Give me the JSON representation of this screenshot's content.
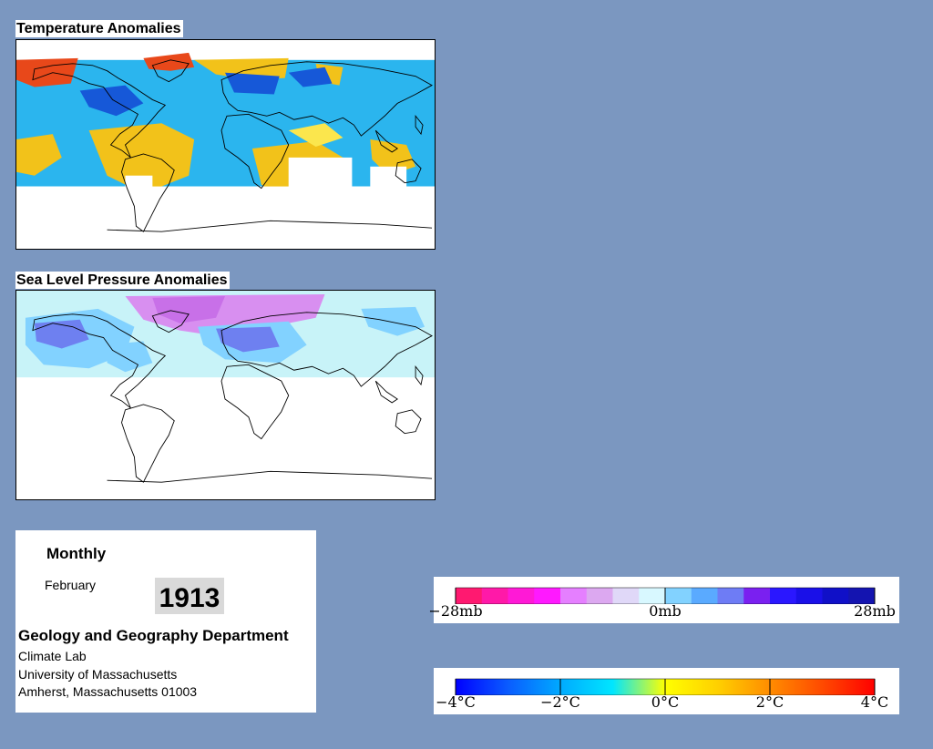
{
  "maps": {
    "temperature": {
      "title": "Temperature Anomalies"
    },
    "pressure": {
      "title": "Sea Level Pressure Anomalies"
    }
  },
  "info": {
    "frequency": "Monthly",
    "month": "February",
    "year": "1913",
    "department": "Geology and Geography Department",
    "lab": "Climate Lab",
    "university": "University of Massachusetts",
    "address": "Amherst, Massachusetts 01003"
  },
  "legends": {
    "pressure": {
      "colors": [
        "#ff1970",
        "#ff19a8",
        "#ff19d6",
        "#ff19ff",
        "#e57fff",
        "#dca8f0",
        "#e0d8f8",
        "#d8f8ff",
        "#82d2ff",
        "#5aaaff",
        "#6e7cf5",
        "#7a20f0",
        "#2a17ff",
        "#1a10e8",
        "#1010c8",
        "#1414b0"
      ],
      "tick_values": [
        -28,
        0,
        28
      ],
      "tick_labels": [
        "−28mb",
        "0mb",
        "28mb"
      ]
    },
    "temperature": {
      "stops": [
        "#0000ff",
        "#0a5cff",
        "#00aaff",
        "#00e6ff",
        "#ffff00",
        "#ffd000",
        "#ff8c00",
        "#ff4a00",
        "#ff0000"
      ],
      "tick_values": [
        -4,
        -2,
        0,
        2,
        4
      ],
      "tick_labels": [
        "−4°C",
        "−2°C",
        "0°C",
        "2°C",
        "4°C"
      ]
    }
  },
  "colors": {
    "background": "#7b97c0",
    "warm": "#f2c21a",
    "warm_light": "#fbe64d",
    "hot": "#e8481a",
    "cool": "#2bb5ee",
    "cold": "#1658d8",
    "low_pressure": "#d88ff0",
    "high_pressure": "#6e80f0",
    "neutral": "#c8f3f8"
  }
}
